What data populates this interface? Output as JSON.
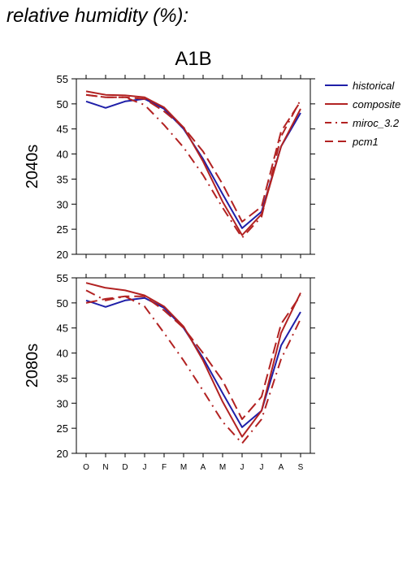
{
  "figure": {
    "title": "relative humidity (%):",
    "scenario": "A1B"
  },
  "legend": {
    "items": [
      {
        "name": "historical",
        "color": "#1f1fa8",
        "dash": "solid"
      },
      {
        "name": "composite",
        "color": "#b22222",
        "dash": "solid"
      },
      {
        "name": "miroc_3.2",
        "color": "#b22222",
        "dash": "dashdot"
      },
      {
        "name": "pcm1",
        "color": "#b22222",
        "dash": "dashed"
      }
    ]
  },
  "chart_data": [
    {
      "type": "line",
      "title": "A1B",
      "ylabel": "2040s",
      "categories": [
        "O",
        "N",
        "D",
        "J",
        "F",
        "M",
        "A",
        "M",
        "J",
        "J",
        "A",
        "S"
      ],
      "ylim": [
        20,
        55
      ],
      "yticks": [
        20,
        25,
        30,
        35,
        40,
        45,
        50,
        55
      ],
      "series": [
        {
          "name": "historical",
          "values": [
            50.5,
            49.2,
            50.5,
            51.0,
            49.0,
            45.0,
            39.0,
            32.0,
            25.2,
            28.5,
            41.5,
            48.2
          ]
        },
        {
          "name": "composite",
          "values": [
            52.5,
            51.8,
            51.7,
            51.3,
            49.3,
            45.3,
            38.5,
            30.5,
            23.8,
            28.0,
            41.5,
            49.0
          ]
        },
        {
          "name": "miroc_3.2",
          "values": [
            51.8,
            51.3,
            51.3,
            49.8,
            45.8,
            41.3,
            35.8,
            29.3,
            23.3,
            27.5,
            43.5,
            50.8
          ]
        },
        {
          "name": "pcm1",
          "values": [
            51.8,
            51.3,
            51.3,
            51.0,
            48.5,
            45.3,
            40.5,
            34.0,
            26.5,
            29.5,
            44.5,
            50.5
          ]
        }
      ]
    },
    {
      "type": "line",
      "title": "",
      "ylabel": "2080s",
      "categories": [
        "O",
        "N",
        "D",
        "J",
        "F",
        "M",
        "A",
        "M",
        "J",
        "J",
        "A",
        "S"
      ],
      "ylim": [
        20,
        55
      ],
      "yticks": [
        20,
        25,
        30,
        35,
        40,
        45,
        50,
        55
      ],
      "series": [
        {
          "name": "historical",
          "values": [
            50.5,
            49.2,
            50.5,
            51.0,
            49.0,
            45.0,
            39.0,
            32.0,
            25.2,
            28.5,
            41.5,
            48.2
          ]
        },
        {
          "name": "composite",
          "values": [
            54.0,
            53.0,
            52.5,
            51.5,
            49.3,
            45.3,
            38.5,
            30.3,
            23.3,
            28.5,
            44.0,
            52.0
          ]
        },
        {
          "name": "miroc_3.2",
          "values": [
            52.5,
            50.5,
            51.3,
            49.3,
            44.0,
            38.5,
            32.5,
            26.3,
            22.0,
            26.8,
            38.8,
            46.8
          ]
        },
        {
          "name": "pcm1",
          "values": [
            50.0,
            50.8,
            51.3,
            51.3,
            48.5,
            45.0,
            40.0,
            34.5,
            26.8,
            31.3,
            45.8,
            51.5
          ]
        }
      ]
    }
  ]
}
